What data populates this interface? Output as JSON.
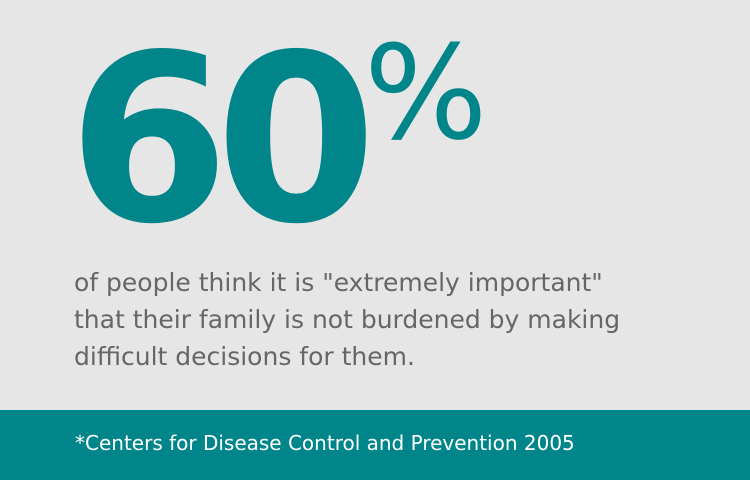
{
  "statistic": {
    "value": "60",
    "unit": "%"
  },
  "description": {
    "lines": [
      "of people think it is \"extremely important\"",
      "that their family is not burdened by making",
      "difficult decisions for them."
    ]
  },
  "footer": {
    "source": "*Centers for Disease Control and Prevention 2005"
  },
  "colors": {
    "accent": "#00858a",
    "background": "#e6e6e6",
    "text": "#666666",
    "footer_text": "#ffffff"
  }
}
